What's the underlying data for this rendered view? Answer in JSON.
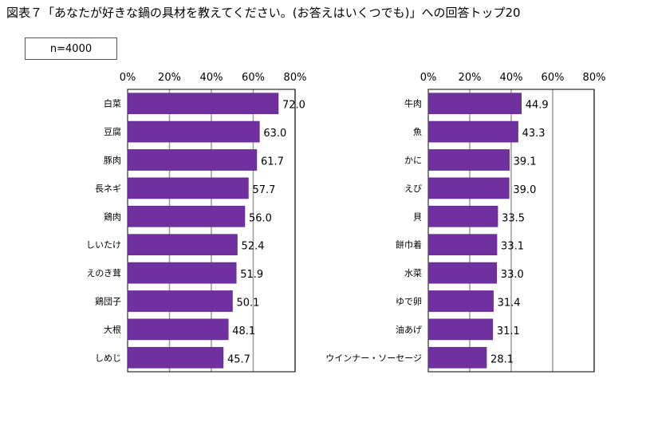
{
  "title": "図表７「あなたが好きな鍋の具材を教えてください。(お答えはいくつでも)」への回答トップ20",
  "sample": "n=4000",
  "colors": {
    "bar": "#7030a0",
    "bar_edge": "#5a2288",
    "grid": "#9a9a9a",
    "axis": "#000000"
  },
  "chart_data": [
    {
      "type": "bar",
      "orientation": "horizontal",
      "title": "",
      "xlabel": "",
      "ylabel": "",
      "xlim": [
        0,
        80
      ],
      "ticks": [
        "0%",
        "20%",
        "40%",
        "60%",
        "80%"
      ],
      "tick_values": [
        0,
        20,
        40,
        60,
        80
      ],
      "grid": true,
      "categories": [
        "白菜",
        "豆腐",
        "豚肉",
        "長ネギ",
        "鶏肉",
        "しいたけ",
        "えのき茸",
        "鶏団子",
        "大根",
        "しめじ"
      ],
      "values": [
        72.0,
        63.0,
        61.7,
        57.7,
        56.0,
        52.4,
        51.9,
        50.1,
        48.1,
        45.7
      ],
      "labels": [
        "72.0",
        "63.0",
        "61.7",
        "57.7",
        "56.0",
        "52.4",
        "51.9",
        "50.1",
        "48.1",
        "45.7"
      ]
    },
    {
      "type": "bar",
      "orientation": "horizontal",
      "title": "",
      "xlabel": "",
      "ylabel": "",
      "xlim": [
        0,
        80
      ],
      "ticks": [
        "0%",
        "20%",
        "40%",
        "60%",
        "80%"
      ],
      "tick_values": [
        0,
        20,
        40,
        60,
        80
      ],
      "grid": true,
      "categories": [
        "牛肉",
        "魚",
        "かに",
        "えび",
        "貝",
        "餅巾着",
        "水菜",
        "ゆで卵",
        "油あげ",
        "ウインナー・ソーセージ"
      ],
      "values": [
        44.9,
        43.3,
        39.1,
        39.0,
        33.5,
        33.1,
        33.0,
        31.4,
        31.1,
        28.1
      ],
      "labels": [
        "44.9",
        "43.3",
        "39.1",
        "39.0",
        "33.5",
        "33.1",
        "33.0",
        "31.4",
        "31.1",
        "28.1"
      ]
    }
  ]
}
